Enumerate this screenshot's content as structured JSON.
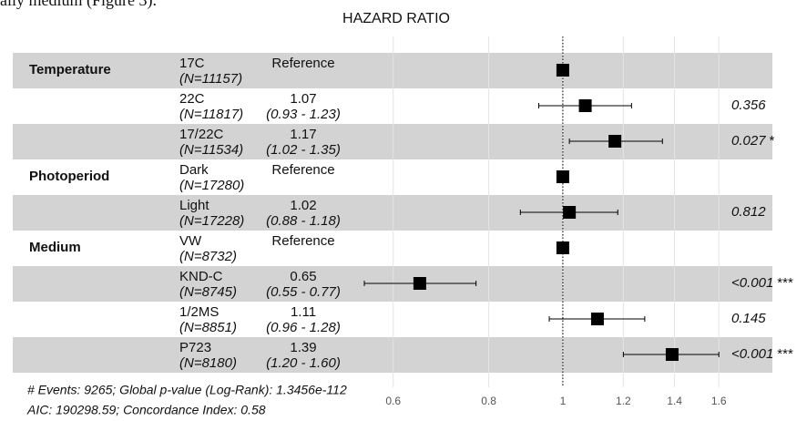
{
  "context_text": "ally medium (Figure 3).",
  "chart_data": {
    "type": "forest",
    "title": "HAZARD RATIO",
    "log_scale": true,
    "xlim": [
      0.55,
      1.88
    ],
    "xticks": [
      0.6,
      0.8,
      1,
      1.2,
      1.4,
      1.6
    ],
    "reference_line": 1,
    "band_color": "#d3d3d3",
    "mark_color": "#000000",
    "rows": [
      {
        "group": "Temperature",
        "level": "17C",
        "n_label": "(N=11157)",
        "estimate": 1,
        "estimate_label": "Reference"
      },
      {
        "level": "22C",
        "n_label": "(N=11817)",
        "estimate": 1.07,
        "ci": [
          0.93,
          1.23
        ],
        "ci_label": "(0.93 - 1.23)",
        "p_value": 0.356
      },
      {
        "level": "17/22C",
        "n_label": "(N=11534)",
        "estimate": 1.17,
        "ci": [
          1.02,
          1.35
        ],
        "ci_label": "(1.02 - 1.35)",
        "p_value": 0.027,
        "stars": "*"
      },
      {
        "group": "Photoperiod",
        "level": "Dark",
        "n_label": "(N=17280)",
        "estimate": 1,
        "estimate_label": "Reference"
      },
      {
        "level": "Light",
        "n_label": "(N=17228)",
        "estimate": 1.02,
        "ci": [
          0.88,
          1.18
        ],
        "ci_label": "(0.88 - 1.18)",
        "p_value": 0.812
      },
      {
        "group": "Medium",
        "level": "VW",
        "n_label": "(N=8732)",
        "estimate": 1,
        "estimate_label": "Reference"
      },
      {
        "level": "KND-C",
        "n_label": "(N=8745)",
        "estimate": 0.65,
        "ci": [
          0.55,
          0.77
        ],
        "ci_label": "(0.55 - 0.77)",
        "p_value": "<0.001",
        "stars": "***"
      },
      {
        "level": "1/2MS",
        "n_label": "(N=8851)",
        "estimate": 1.11,
        "ci": [
          0.96,
          1.28
        ],
        "ci_label": "(0.96 - 1.28)",
        "p_value": 0.145
      },
      {
        "level": "P723",
        "n_label": "(N=8180)",
        "estimate": 1.39,
        "ci": [
          1.2,
          1.6
        ],
        "ci_label": "(1.20 - 1.60)",
        "p_value": "<0.001",
        "stars": "***"
      }
    ],
    "footer": [
      "# Events: 9265; Global p-value (Log-Rank): 1.3456e-112",
      "AIC: 190298.59; Concordance Index: 0.58"
    ]
  }
}
